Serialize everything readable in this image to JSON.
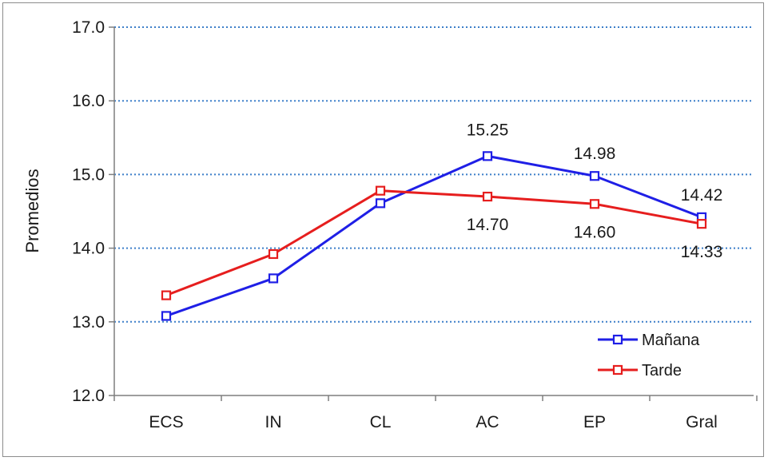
{
  "chart_data": {
    "type": "line",
    "title": "",
    "xlabel": "",
    "ylabel": "Promedios",
    "categories": [
      "ECS",
      "IN",
      "CL",
      "AC",
      "EP",
      "Gral"
    ],
    "ylim": [
      12.0,
      17.0
    ],
    "yticks": [
      "12.0",
      "13.0",
      "14.0",
      "15.0",
      "16.0",
      "17.0"
    ],
    "grid": "horizontal dotted",
    "legend_position": "bottom-right",
    "series": [
      {
        "name": "Mañana",
        "color": "#1f1fe6",
        "values": [
          13.08,
          13.59,
          14.61,
          15.25,
          14.98,
          14.42
        ],
        "data_labels": [
          "",
          "",
          "",
          "15.25",
          "14.98",
          "14.42"
        ]
      },
      {
        "name": "Tarde",
        "color": "#e61e1e",
        "values": [
          13.36,
          13.92,
          14.78,
          14.7,
          14.6,
          14.33
        ],
        "data_labels": [
          "",
          "",
          "",
          "14.70",
          "14.60",
          "14.33"
        ]
      }
    ]
  }
}
